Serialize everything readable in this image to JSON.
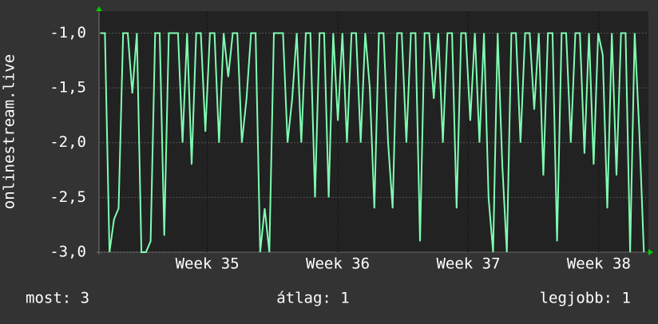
{
  "chart_data": {
    "type": "line",
    "ylabel": "onlinestream.live",
    "xlim": [
      34.17,
      38.38
    ],
    "xticks": [
      {
        "value": 35,
        "label": "Week 35"
      },
      {
        "value": 36,
        "label": "Week 36"
      },
      {
        "value": 37,
        "label": "Week 37"
      },
      {
        "value": 38,
        "label": "Week 38"
      }
    ],
    "ylim": [
      -3,
      -0.8
    ],
    "yticks": [
      {
        "value": -3,
        "label": "-3,0"
      },
      {
        "value": -2.5,
        "label": "-2,5"
      },
      {
        "value": -2,
        "label": "-2,0"
      },
      {
        "value": -1.5,
        "label": "-1,5"
      },
      {
        "value": -1,
        "label": "-1,0"
      }
    ],
    "grid": true,
    "x": [
      34.18,
      34.215,
      34.25,
      34.285,
      34.32,
      34.355,
      34.39,
      34.425,
      34.46,
      34.495,
      34.53,
      34.565,
      34.6,
      34.635,
      34.67,
      34.705,
      34.74,
      34.775,
      34.81,
      34.845,
      34.88,
      34.915,
      34.95,
      34.985,
      35.02,
      35.055,
      35.09,
      35.125,
      35.16,
      35.195,
      35.23,
      35.265,
      35.3,
      35.335,
      35.37,
      35.405,
      35.44,
      35.475,
      35.51,
      35.545,
      35.58,
      35.615,
      35.65,
      35.685,
      35.72,
      35.755,
      35.79,
      35.825,
      35.86,
      35.895,
      35.93,
      35.965,
      36.0,
      36.035,
      36.07,
      36.105,
      36.14,
      36.175,
      36.21,
      36.245,
      36.28,
      36.315,
      36.35,
      36.385,
      36.42,
      36.455,
      36.49,
      36.525,
      36.56,
      36.595,
      36.63,
      36.665,
      36.7,
      36.735,
      36.77,
      36.805,
      36.84,
      36.875,
      36.91,
      36.945,
      36.98,
      37.015,
      37.05,
      37.085,
      37.12,
      37.155,
      37.19,
      37.225,
      37.26,
      37.295,
      37.33,
      37.365,
      37.4,
      37.435,
      37.47,
      37.505,
      37.54,
      37.575,
      37.61,
      37.645,
      37.68,
      37.715,
      37.75,
      37.785,
      37.82,
      37.855,
      37.89,
      37.925,
      37.96,
      37.995,
      38.03,
      38.065,
      38.1,
      38.135,
      38.17,
      38.205,
      38.24,
      38.275,
      38.31,
      38.345
    ],
    "series": [
      {
        "color": "#7fffb2",
        "values": [
          -1,
          -1,
          -3,
          -2.7,
          -2.6,
          -1,
          -1,
          -1.55,
          -1,
          -3,
          -3,
          -2.9,
          -1,
          -1,
          -2.85,
          -1,
          -1,
          -1,
          -2,
          -1,
          -2.2,
          -1,
          -1,
          -1.9,
          -1,
          -1,
          -2,
          -1,
          -1.4,
          -1,
          -1,
          -2,
          -1.6,
          -1,
          -1,
          -3,
          -2.6,
          -3,
          -1,
          -1,
          -1,
          -2,
          -1.6,
          -1,
          -2,
          -1,
          -1,
          -2.5,
          -1,
          -1,
          -2.5,
          -1,
          -1.8,
          -1,
          -2,
          -1,
          -1,
          -2,
          -1,
          -1.5,
          -2.6,
          -1,
          -1,
          -2,
          -2.6,
          -1,
          -1,
          -2,
          -1,
          -1,
          -2.9,
          -1,
          -1,
          -1.6,
          -1,
          -2,
          -1,
          -1,
          -2.6,
          -1,
          -1,
          -1.8,
          -1,
          -2,
          -1,
          -2.5,
          -3,
          -1,
          -2.2,
          -3,
          -1,
          -1,
          -2,
          -1,
          -1,
          -1.7,
          -1,
          -2.3,
          -1,
          -1,
          -2.9,
          -1,
          -1,
          -2,
          -1,
          -1,
          -2.1,
          -1,
          -2.2,
          -1,
          -1.2,
          -2.6,
          -1,
          -2.3,
          -1,
          -1,
          -3,
          -1,
          -1.9,
          -3
        ]
      }
    ]
  },
  "footer": {
    "current": "most: 3",
    "average": "átlag: 1",
    "best": "legjobb: 1"
  }
}
